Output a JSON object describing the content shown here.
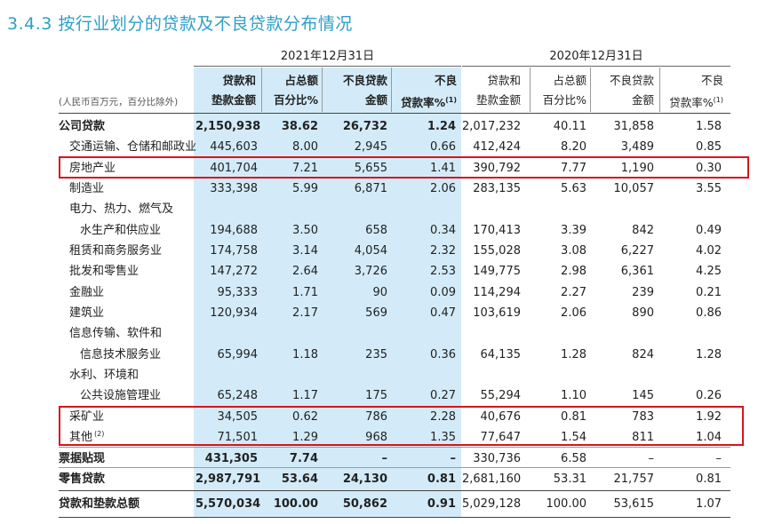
{
  "title": "3.4.3 按行业划分的贷款及不良贷款分布情况",
  "years": {
    "current": "2021年12月31日",
    "previous": "2020年12月31日"
  },
  "unit_note": "(人民币百万元，百分比除外)",
  "headers": {
    "h1": {
      "line1": "贷款和",
      "line2": "垫款金额"
    },
    "h2": {
      "line1": "占总额",
      "line2": "百分比%"
    },
    "h3": {
      "line1": "不良贷款",
      "line2": "金额"
    },
    "h4": {
      "line1": "不良",
      "line2": "贷款率%",
      "sup": "(1)"
    }
  },
  "rows": [
    {
      "label": "公司贷款",
      "bold": true,
      "v": [
        "2,150,938",
        "38.62",
        "26,732",
        "1.24",
        "2,017,232",
        "40.11",
        "31,858",
        "1.58"
      ]
    },
    {
      "label": "交通运输、仓储和邮政业",
      "v": [
        "445,603",
        "8.00",
        "2,945",
        "0.66",
        "412,424",
        "8.20",
        "3,489",
        "0.85"
      ]
    },
    {
      "label": "房地产业",
      "v": [
        "401,704",
        "7.21",
        "5,655",
        "1.41",
        "390,792",
        "7.77",
        "1,190",
        "0.30"
      ]
    },
    {
      "label": "制造业",
      "v": [
        "333,398",
        "5.99",
        "6,871",
        "2.06",
        "283,135",
        "5.63",
        "10,057",
        "3.55"
      ]
    },
    {
      "label": "电力、热力、燃气及",
      "v": [
        "",
        "",
        "",
        "",
        "",
        "",
        "",
        ""
      ]
    },
    {
      "label": "水生产和供应业",
      "indent2": true,
      "v": [
        "194,688",
        "3.50",
        "658",
        "0.34",
        "170,413",
        "3.39",
        "842",
        "0.49"
      ]
    },
    {
      "label": "租赁和商务服务业",
      "v": [
        "174,758",
        "3.14",
        "4,054",
        "2.32",
        "155,028",
        "3.08",
        "6,227",
        "4.02"
      ]
    },
    {
      "label": "批发和零售业",
      "v": [
        "147,272",
        "2.64",
        "3,726",
        "2.53",
        "149,775",
        "2.98",
        "6,361",
        "4.25"
      ]
    },
    {
      "label": "金融业",
      "v": [
        "95,333",
        "1.71",
        "90",
        "0.09",
        "114,294",
        "2.27",
        "239",
        "0.21"
      ]
    },
    {
      "label": "建筑业",
      "v": [
        "120,934",
        "2.17",
        "569",
        "0.47",
        "103,619",
        "2.06",
        "890",
        "0.86"
      ]
    },
    {
      "label": "信息传输、软件和",
      "v": [
        "",
        "",
        "",
        "",
        "",
        "",
        "",
        ""
      ]
    },
    {
      "label": "信息技术服务业",
      "indent2": true,
      "v": [
        "65,994",
        "1.18",
        "235",
        "0.36",
        "64,135",
        "1.28",
        "824",
        "1.28"
      ]
    },
    {
      "label": "水利、环境和",
      "v": [
        "",
        "",
        "",
        "",
        "",
        "",
        "",
        ""
      ]
    },
    {
      "label": "公共设施管理业",
      "indent2": true,
      "v": [
        "65,248",
        "1.17",
        "175",
        "0.27",
        "55,294",
        "1.10",
        "145",
        "0.26"
      ]
    },
    {
      "label": "采矿业",
      "v": [
        "34,505",
        "0.62",
        "786",
        "2.28",
        "40,676",
        "0.81",
        "783",
        "1.92"
      ]
    },
    {
      "label": "其他",
      "sup": "(2)",
      "v": [
        "71,501",
        "1.29",
        "968",
        "1.35",
        "77,647",
        "1.54",
        "811",
        "1.04"
      ]
    },
    {
      "label": "票据贴现",
      "bold": true,
      "v": [
        "431,305",
        "7.74",
        "–",
        "–",
        "330,736",
        "6.58",
        "–",
        "–"
      ]
    },
    {
      "label": "零售贷款",
      "bold": true,
      "v": [
        "2,987,791",
        "53.64",
        "24,130",
        "0.81",
        "2,681,160",
        "53.31",
        "21,757",
        "0.81"
      ]
    },
    {
      "label": "贷款和垫款总额",
      "bold": true,
      "v": [
        "5,570,034",
        "100.00",
        "50,862",
        "0.91",
        "5,029,128",
        "100.00",
        "53,615",
        "1.07"
      ]
    }
  ],
  "colors": {
    "title": "#2f9fc8",
    "highlight": "#d3ebf8",
    "box": "#d8141b"
  }
}
